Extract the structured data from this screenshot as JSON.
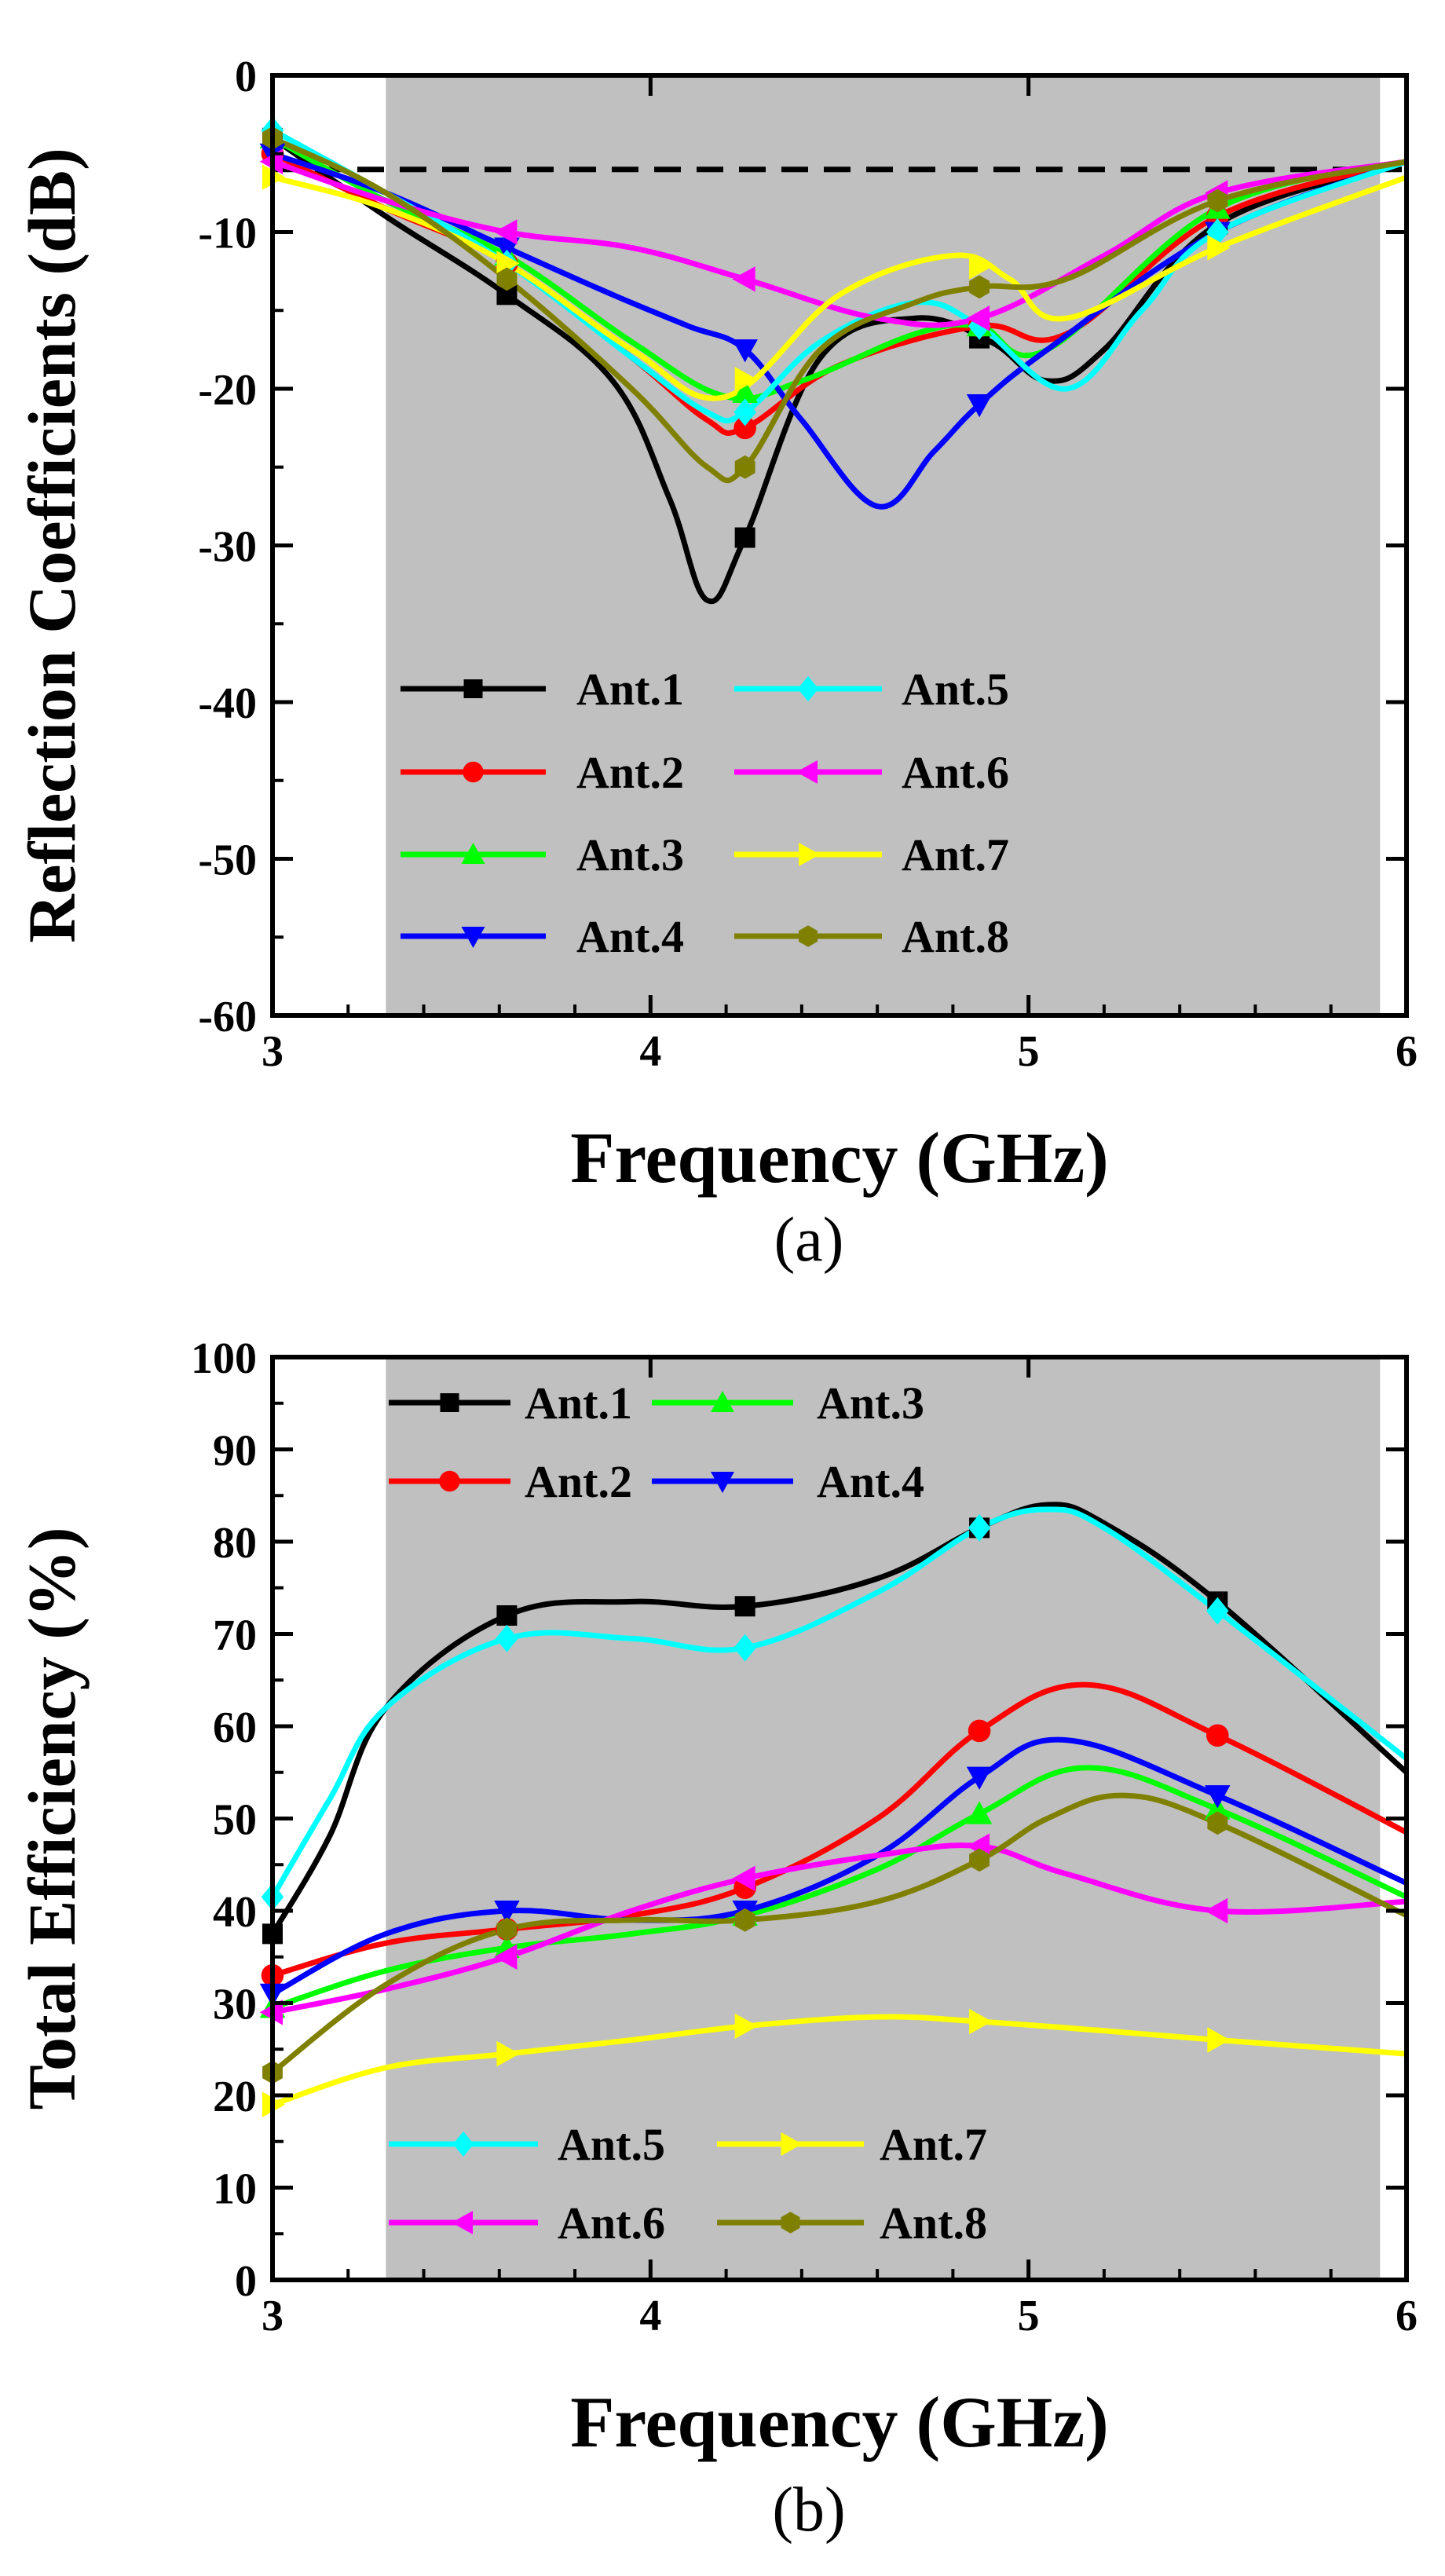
{
  "chart_data": [
    {
      "type": "line",
      "caption": "(a)",
      "xlabel": "Frequency (GHz)",
      "ylabel": "Reflection Coefficients (dB)",
      "xlim": [
        3,
        6
      ],
      "ylim": [
        -60,
        0
      ],
      "xticks": [
        "3",
        "4",
        "5",
        "6"
      ],
      "yticks": [
        "0",
        "-10",
        "-20",
        "-30",
        "-40",
        "-50",
        "-60"
      ],
      "shaded_band": [
        3.3,
        5.93
      ],
      "reference_line": -6,
      "legend_position": "lower-middle",
      "series": [
        {
          "name": "Ant.1",
          "color": "#000000",
          "marker": "square",
          "x": [
            3.0,
            3.3,
            3.62,
            3.9,
            4.05,
            4.15,
            4.25,
            4.45,
            4.7,
            4.9,
            5.05,
            5.2,
            5.5,
            6.0
          ],
          "y": [
            -4.0,
            -9.0,
            -14.0,
            -19.5,
            -27.0,
            -33.5,
            -29.5,
            -18.0,
            -15.5,
            -17.0,
            -19.5,
            -17.5,
            -9.5,
            -5.5
          ],
          "markers_x": [
            3.0,
            3.62,
            4.25,
            4.87,
            5.5
          ]
        },
        {
          "name": "Ant.2",
          "color": "#ff0000",
          "marker": "circle",
          "x": [
            3.0,
            3.3,
            3.62,
            3.95,
            4.15,
            4.25,
            4.5,
            4.87,
            5.1,
            5.5,
            6.0
          ],
          "y": [
            -5.0,
            -8.5,
            -12.0,
            -18.0,
            -22.0,
            -22.5,
            -18.5,
            -16.0,
            -16.5,
            -9.0,
            -5.5
          ],
          "markers_x": [
            3.0,
            3.62,
            4.25,
            4.87,
            5.5
          ]
        },
        {
          "name": "Ant.3",
          "color": "#00ff00",
          "marker": "triangle-up",
          "x": [
            3.0,
            3.3,
            3.62,
            3.95,
            4.2,
            4.4,
            4.7,
            4.87,
            5.05,
            5.5,
            6.0
          ],
          "y": [
            -4.0,
            -8.0,
            -11.5,
            -17.0,
            -20.5,
            -19.5,
            -16.5,
            -16.0,
            -17.5,
            -8.5,
            -5.5
          ],
          "markers_x": [
            3.0,
            3.62,
            4.25,
            4.87,
            5.5
          ]
        },
        {
          "name": "Ant.4",
          "color": "#0000ff",
          "marker": "triangle-down",
          "x": [
            3.0,
            3.3,
            3.62,
            3.9,
            4.1,
            4.25,
            4.4,
            4.6,
            4.75,
            4.87,
            5.05,
            5.5,
            6.0
          ],
          "y": [
            -5.0,
            -7.5,
            -11.0,
            -14.0,
            -16.0,
            -17.5,
            -22.0,
            -27.5,
            -24.0,
            -21.0,
            -17.5,
            -10.0,
            -5.5
          ],
          "markers_x": [
            3.0,
            3.62,
            4.25,
            4.87,
            5.5
          ]
        },
        {
          "name": "Ant.5",
          "color": "#00ffff",
          "marker": "diamond",
          "x": [
            3.0,
            3.3,
            3.62,
            3.95,
            4.15,
            4.25,
            4.45,
            4.7,
            4.87,
            5.1,
            5.3,
            5.5,
            6.0
          ],
          "y": [
            -3.5,
            -7.5,
            -12.0,
            -18.0,
            -21.5,
            -21.5,
            -17.0,
            -14.5,
            -16.0,
            -20.0,
            -15.0,
            -10.0,
            -5.5
          ],
          "markers_x": [
            3.0,
            3.62,
            4.25,
            4.87,
            5.5
          ]
        },
        {
          "name": "Ant.6",
          "color": "#ff00ff",
          "marker": "triangle-left",
          "x": [
            3.0,
            3.3,
            3.62,
            3.95,
            4.25,
            4.6,
            4.87,
            5.2,
            5.5,
            6.0
          ],
          "y": [
            -5.5,
            -8.0,
            -10.0,
            -11.0,
            -13.0,
            -15.5,
            -15.5,
            -11.5,
            -7.5,
            -5.5
          ],
          "markers_x": [
            3.0,
            3.62,
            4.25,
            4.87,
            5.5
          ]
        },
        {
          "name": "Ant.7",
          "color": "#ffff00",
          "marker": "triangle-right",
          "x": [
            3.0,
            3.3,
            3.62,
            3.95,
            4.2,
            4.5,
            4.8,
            4.95,
            5.1,
            5.5,
            6.0
          ],
          "y": [
            -6.5,
            -8.5,
            -12.0,
            -17.5,
            -20.5,
            -14.0,
            -11.5,
            -13.0,
            -15.5,
            -11.0,
            -6.5
          ],
          "markers_x": [
            3.0,
            3.62,
            4.25,
            4.87,
            5.5
          ]
        },
        {
          "name": "Ant.8",
          "color": "#808000",
          "marker": "hexagon",
          "x": [
            3.0,
            3.3,
            3.62,
            3.95,
            4.15,
            4.25,
            4.45,
            4.7,
            4.87,
            5.1,
            5.5,
            6.0
          ],
          "y": [
            -4.0,
            -7.5,
            -13.0,
            -20.0,
            -25.0,
            -25.0,
            -17.5,
            -14.5,
            -13.5,
            -13.0,
            -8.0,
            -5.5
          ],
          "markers_x": [
            3.0,
            3.62,
            4.25,
            4.87,
            5.5
          ]
        }
      ]
    },
    {
      "type": "line",
      "caption": "(b)",
      "xlabel": "Frequency (GHz)",
      "ylabel": "Total Efficiency (%)",
      "xlim": [
        3,
        6
      ],
      "ylim": [
        0,
        100
      ],
      "xticks": [
        "3",
        "4",
        "5",
        "6"
      ],
      "yticks": [
        "0",
        "10",
        "20",
        "30",
        "40",
        "50",
        "60",
        "70",
        "80",
        "90",
        "100"
      ],
      "shaded_band": [
        3.3,
        5.93
      ],
      "legend_groups": [
        [
          "Ant.1",
          "Ant.2",
          "Ant.3",
          "Ant.4"
        ],
        [
          "Ant.5",
          "Ant.6",
          "Ant.7",
          "Ant.8"
        ]
      ],
      "series": [
        {
          "name": "Ant.1",
          "color": "#000000",
          "marker": "square",
          "x": [
            3.0,
            3.15,
            3.3,
            3.62,
            3.95,
            4.25,
            4.6,
            4.87,
            5.05,
            5.2,
            5.5,
            6.0
          ],
          "y": [
            37.5,
            48.0,
            62.0,
            72.0,
            73.5,
            73.0,
            76.0,
            81.5,
            84.0,
            82.0,
            73.5,
            55.0
          ],
          "markers_x": [
            3.0,
            3.62,
            4.25,
            4.87,
            5.5
          ]
        },
        {
          "name": "Ant.2",
          "color": "#ff0000",
          "marker": "circle",
          "x": [
            3.0,
            3.3,
            3.62,
            3.95,
            4.25,
            4.6,
            4.87,
            5.15,
            5.5,
            6.0
          ],
          "y": [
            33.0,
            36.5,
            38.0,
            39.5,
            42.5,
            50.0,
            59.5,
            64.5,
            59.0,
            48.5
          ],
          "markers_x": [
            3.0,
            3.62,
            4.25,
            4.87,
            5.5
          ]
        },
        {
          "name": "Ant.3",
          "color": "#00ff00",
          "marker": "triangle-up",
          "x": [
            3.0,
            3.3,
            3.62,
            3.95,
            4.25,
            4.6,
            4.87,
            5.15,
            5.5,
            6.0
          ],
          "y": [
            29.5,
            33.5,
            36.0,
            37.5,
            39.5,
            44.5,
            50.5,
            55.5,
            51.0,
            41.5
          ],
          "markers_x": [
            3.0,
            3.62,
            4.25,
            4.87,
            5.5
          ]
        },
        {
          "name": "Ant.4",
          "color": "#0000ff",
          "marker": "triangle-down",
          "x": [
            3.0,
            3.3,
            3.62,
            3.95,
            4.25,
            4.6,
            4.87,
            5.1,
            5.5,
            6.0
          ],
          "y": [
            31.0,
            37.5,
            40.0,
            39.0,
            40.0,
            46.0,
            54.5,
            58.5,
            52.5,
            43.0
          ],
          "markers_x": [
            3.0,
            3.62,
            4.25,
            4.87,
            5.5
          ]
        },
        {
          "name": "Ant.5",
          "color": "#00ffff",
          "marker": "diamond",
          "x": [
            3.0,
            3.15,
            3.3,
            3.62,
            3.95,
            4.25,
            4.6,
            4.87,
            5.05,
            5.2,
            5.5,
            6.0
          ],
          "y": [
            41.5,
            52.0,
            62.0,
            69.5,
            69.5,
            68.5,
            74.5,
            81.5,
            83.5,
            81.5,
            72.5,
            56.5
          ],
          "markers_x": [
            3.0,
            3.62,
            4.25,
            4.87,
            5.5
          ]
        },
        {
          "name": "Ant.6",
          "color": "#ff00ff",
          "marker": "triangle-left",
          "x": [
            3.0,
            3.3,
            3.62,
            3.95,
            4.25,
            4.6,
            4.87,
            5.1,
            5.5,
            6.0
          ],
          "y": [
            29.0,
            31.5,
            35.0,
            40.0,
            43.5,
            46.0,
            47.0,
            44.0,
            40.0,
            41.0
          ],
          "markers_x": [
            3.0,
            3.62,
            4.25,
            4.87,
            5.5
          ]
        },
        {
          "name": "Ant.7",
          "color": "#ffff00",
          "marker": "triangle-right",
          "x": [
            3.0,
            3.3,
            3.62,
            3.95,
            4.25,
            4.6,
            4.87,
            5.2,
            5.5,
            6.0
          ],
          "y": [
            19.0,
            23.0,
            24.5,
            26.0,
            27.5,
            28.5,
            28.0,
            27.0,
            26.0,
            24.5
          ],
          "markers_x": [
            3.0,
            3.62,
            4.25,
            4.87,
            5.5
          ]
        },
        {
          "name": "Ant.8",
          "color": "#808000",
          "marker": "hexagon",
          "x": [
            3.0,
            3.3,
            3.62,
            3.95,
            4.25,
            4.6,
            4.87,
            5.05,
            5.25,
            5.5,
            6.0
          ],
          "y": [
            22.5,
            32.0,
            38.0,
            39.0,
            39.0,
            41.0,
            45.5,
            50.0,
            52.5,
            49.5,
            39.5
          ],
          "markers_x": [
            3.0,
            3.62,
            4.25,
            4.87,
            5.5
          ]
        }
      ]
    }
  ]
}
